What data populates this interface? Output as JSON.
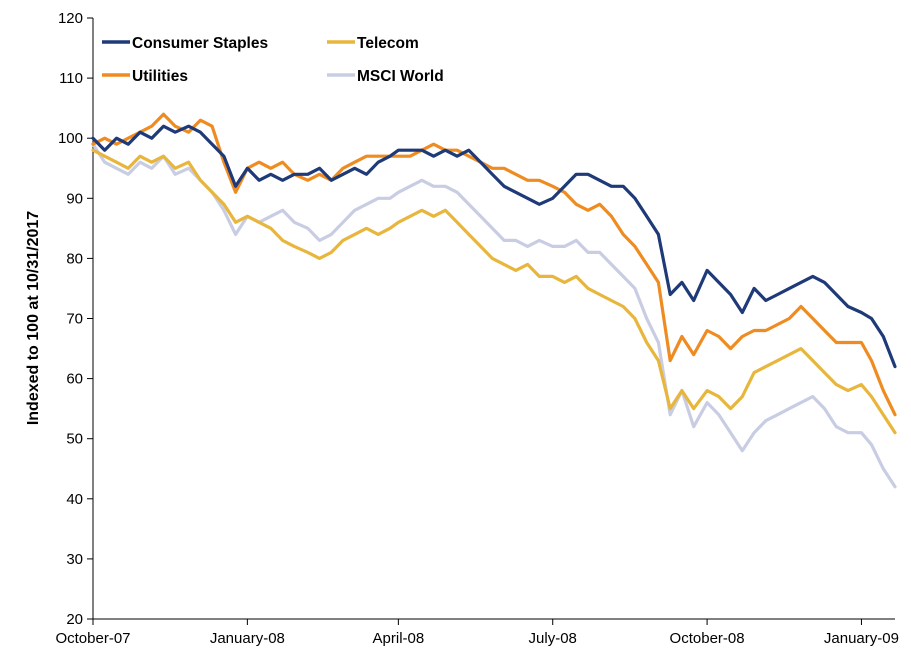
{
  "chart_data": {
    "type": "line",
    "title": "",
    "xlabel": "",
    "ylabel": "Indexed to 100 at 10/31/2017",
    "ylim": [
      20,
      120
    ],
    "yticks": [
      20,
      30,
      40,
      50,
      60,
      70,
      80,
      90,
      100,
      110,
      120
    ],
    "xlim": [
      "2007-10-31",
      "2009-02-20"
    ],
    "xticks": [
      {
        "label": "October-07",
        "date": "2007-10-31"
      },
      {
        "label": "January-08",
        "date": "2008-01-31"
      },
      {
        "label": "April-08",
        "date": "2008-04-30"
      },
      {
        "label": "July-08",
        "date": "2008-07-31"
      },
      {
        "label": "October-08",
        "date": "2008-10-31"
      },
      {
        "label": "January-09",
        "date": "2009-01-31"
      }
    ],
    "grid": false,
    "legend": "top-left",
    "series": [
      {
        "name": "Consumer Staples",
        "color": "#1f3a78",
        "points": [
          [
            "2007-10-31",
            100
          ],
          [
            "2007-11-07",
            98
          ],
          [
            "2007-11-14",
            100
          ],
          [
            "2007-11-21",
            99
          ],
          [
            "2007-11-28",
            101
          ],
          [
            "2007-12-05",
            100
          ],
          [
            "2007-12-12",
            102
          ],
          [
            "2007-12-19",
            101
          ],
          [
            "2007-12-27",
            102
          ],
          [
            "2008-01-03",
            101
          ],
          [
            "2008-01-10",
            99
          ],
          [
            "2008-01-17",
            97
          ],
          [
            "2008-01-24",
            92
          ],
          [
            "2008-01-31",
            95
          ],
          [
            "2008-02-07",
            93
          ],
          [
            "2008-02-14",
            94
          ],
          [
            "2008-02-21",
            93
          ],
          [
            "2008-02-28",
            94
          ],
          [
            "2008-03-07",
            94
          ],
          [
            "2008-03-14",
            95
          ],
          [
            "2008-03-21",
            93
          ],
          [
            "2008-03-28",
            94
          ],
          [
            "2008-04-04",
            95
          ],
          [
            "2008-04-11",
            94
          ],
          [
            "2008-04-18",
            96
          ],
          [
            "2008-04-25",
            97
          ],
          [
            "2008-04-30",
            98
          ],
          [
            "2008-05-07",
            98
          ],
          [
            "2008-05-14",
            98
          ],
          [
            "2008-05-21",
            97
          ],
          [
            "2008-05-28",
            98
          ],
          [
            "2008-06-04",
            97
          ],
          [
            "2008-06-11",
            98
          ],
          [
            "2008-06-18",
            96
          ],
          [
            "2008-06-25",
            94
          ],
          [
            "2008-07-02",
            92
          ],
          [
            "2008-07-09",
            91
          ],
          [
            "2008-07-16",
            90
          ],
          [
            "2008-07-23",
            89
          ],
          [
            "2008-07-31",
            90
          ],
          [
            "2008-08-07",
            92
          ],
          [
            "2008-08-14",
            94
          ],
          [
            "2008-08-21",
            94
          ],
          [
            "2008-08-28",
            93
          ],
          [
            "2008-09-04",
            92
          ],
          [
            "2008-09-11",
            92
          ],
          [
            "2008-09-18",
            90
          ],
          [
            "2008-09-25",
            87
          ],
          [
            "2008-10-02",
            84
          ],
          [
            "2008-10-09",
            74
          ],
          [
            "2008-10-16",
            76
          ],
          [
            "2008-10-23",
            73
          ],
          [
            "2008-10-31",
            78
          ],
          [
            "2008-11-07",
            76
          ],
          [
            "2008-11-14",
            74
          ],
          [
            "2008-11-21",
            71
          ],
          [
            "2008-11-28",
            75
          ],
          [
            "2008-12-05",
            73
          ],
          [
            "2008-12-12",
            74
          ],
          [
            "2008-12-19",
            75
          ],
          [
            "2008-12-26",
            76
          ],
          [
            "2009-01-02",
            77
          ],
          [
            "2009-01-09",
            76
          ],
          [
            "2009-01-16",
            74
          ],
          [
            "2009-01-23",
            72
          ],
          [
            "2009-01-31",
            71
          ],
          [
            "2009-02-06",
            70
          ],
          [
            "2009-02-13",
            67
          ],
          [
            "2009-02-20",
            62
          ]
        ]
      },
      {
        "name": "Telecom",
        "color": "#e8b63c",
        "points": [
          [
            "2007-10-31",
            98
          ],
          [
            "2007-11-07",
            97
          ],
          [
            "2007-11-14",
            96
          ],
          [
            "2007-11-21",
            95
          ],
          [
            "2007-11-28",
            97
          ],
          [
            "2007-12-05",
            96
          ],
          [
            "2007-12-12",
            97
          ],
          [
            "2007-12-19",
            95
          ],
          [
            "2007-12-27",
            96
          ],
          [
            "2008-01-03",
            93
          ],
          [
            "2008-01-10",
            91
          ],
          [
            "2008-01-17",
            89
          ],
          [
            "2008-01-24",
            86
          ],
          [
            "2008-01-31",
            87
          ],
          [
            "2008-02-07",
            86
          ],
          [
            "2008-02-14",
            85
          ],
          [
            "2008-02-21",
            83
          ],
          [
            "2008-02-28",
            82
          ],
          [
            "2008-03-07",
            81
          ],
          [
            "2008-03-14",
            80
          ],
          [
            "2008-03-21",
            81
          ],
          [
            "2008-03-28",
            83
          ],
          [
            "2008-04-04",
            84
          ],
          [
            "2008-04-11",
            85
          ],
          [
            "2008-04-18",
            84
          ],
          [
            "2008-04-25",
            85
          ],
          [
            "2008-04-30",
            86
          ],
          [
            "2008-05-07",
            87
          ],
          [
            "2008-05-14",
            88
          ],
          [
            "2008-05-21",
            87
          ],
          [
            "2008-05-28",
            88
          ],
          [
            "2008-06-04",
            86
          ],
          [
            "2008-06-11",
            84
          ],
          [
            "2008-06-18",
            82
          ],
          [
            "2008-06-25",
            80
          ],
          [
            "2008-07-02",
            79
          ],
          [
            "2008-07-09",
            78
          ],
          [
            "2008-07-16",
            79
          ],
          [
            "2008-07-23",
            77
          ],
          [
            "2008-07-31",
            77
          ],
          [
            "2008-08-07",
            76
          ],
          [
            "2008-08-14",
            77
          ],
          [
            "2008-08-21",
            75
          ],
          [
            "2008-08-28",
            74
          ],
          [
            "2008-09-04",
            73
          ],
          [
            "2008-09-11",
            72
          ],
          [
            "2008-09-18",
            70
          ],
          [
            "2008-09-25",
            66
          ],
          [
            "2008-10-02",
            63
          ],
          [
            "2008-10-09",
            55
          ],
          [
            "2008-10-16",
            58
          ],
          [
            "2008-10-23",
            55
          ],
          [
            "2008-10-31",
            58
          ],
          [
            "2008-11-07",
            57
          ],
          [
            "2008-11-14",
            55
          ],
          [
            "2008-11-21",
            57
          ],
          [
            "2008-11-28",
            61
          ],
          [
            "2008-12-05",
            62
          ],
          [
            "2008-12-12",
            63
          ],
          [
            "2008-12-19",
            64
          ],
          [
            "2008-12-26",
            65
          ],
          [
            "2009-01-02",
            63
          ],
          [
            "2009-01-09",
            61
          ],
          [
            "2009-01-16",
            59
          ],
          [
            "2009-01-23",
            58
          ],
          [
            "2009-01-31",
            59
          ],
          [
            "2009-02-06",
            57
          ],
          [
            "2009-02-13",
            54
          ],
          [
            "2009-02-20",
            51
          ]
        ]
      },
      {
        "name": "Utilities",
        "color": "#ef8c21",
        "points": [
          [
            "2007-10-31",
            99
          ],
          [
            "2007-11-07",
            100
          ],
          [
            "2007-11-14",
            99
          ],
          [
            "2007-11-21",
            100
          ],
          [
            "2007-11-28",
            101
          ],
          [
            "2007-12-05",
            102
          ],
          [
            "2007-12-12",
            104
          ],
          [
            "2007-12-19",
            102
          ],
          [
            "2007-12-27",
            101
          ],
          [
            "2008-01-03",
            103
          ],
          [
            "2008-01-10",
            102
          ],
          [
            "2008-01-17",
            96
          ],
          [
            "2008-01-24",
            91
          ],
          [
            "2008-01-31",
            95
          ],
          [
            "2008-02-07",
            96
          ],
          [
            "2008-02-14",
            95
          ],
          [
            "2008-02-21",
            96
          ],
          [
            "2008-02-28",
            94
          ],
          [
            "2008-03-07",
            93
          ],
          [
            "2008-03-14",
            94
          ],
          [
            "2008-03-21",
            93
          ],
          [
            "2008-03-28",
            95
          ],
          [
            "2008-04-04",
            96
          ],
          [
            "2008-04-11",
            97
          ],
          [
            "2008-04-18",
            97
          ],
          [
            "2008-04-25",
            97
          ],
          [
            "2008-04-30",
            97
          ],
          [
            "2008-05-07",
            97
          ],
          [
            "2008-05-14",
            98
          ],
          [
            "2008-05-21",
            99
          ],
          [
            "2008-05-28",
            98
          ],
          [
            "2008-06-04",
            98
          ],
          [
            "2008-06-11",
            97
          ],
          [
            "2008-06-18",
            96
          ],
          [
            "2008-06-25",
            95
          ],
          [
            "2008-07-02",
            95
          ],
          [
            "2008-07-09",
            94
          ],
          [
            "2008-07-16",
            93
          ],
          [
            "2008-07-23",
            93
          ],
          [
            "2008-07-31",
            92
          ],
          [
            "2008-08-07",
            91
          ],
          [
            "2008-08-14",
            89
          ],
          [
            "2008-08-21",
            88
          ],
          [
            "2008-08-28",
            89
          ],
          [
            "2008-09-04",
            87
          ],
          [
            "2008-09-11",
            84
          ],
          [
            "2008-09-18",
            82
          ],
          [
            "2008-09-25",
            79
          ],
          [
            "2008-10-02",
            76
          ],
          [
            "2008-10-09",
            63
          ],
          [
            "2008-10-16",
            67
          ],
          [
            "2008-10-23",
            64
          ],
          [
            "2008-10-31",
            68
          ],
          [
            "2008-11-07",
            67
          ],
          [
            "2008-11-14",
            65
          ],
          [
            "2008-11-21",
            67
          ],
          [
            "2008-11-28",
            68
          ],
          [
            "2008-12-05",
            68
          ],
          [
            "2008-12-12",
            69
          ],
          [
            "2008-12-19",
            70
          ],
          [
            "2008-12-26",
            72
          ],
          [
            "2009-01-02",
            70
          ],
          [
            "2009-01-09",
            68
          ],
          [
            "2009-01-16",
            66
          ],
          [
            "2009-01-23",
            66
          ],
          [
            "2009-01-31",
            66
          ],
          [
            "2009-02-06",
            63
          ],
          [
            "2009-02-13",
            58
          ],
          [
            "2009-02-20",
            54
          ]
        ]
      },
      {
        "name": "MSCI World",
        "color": "#c9cde3",
        "points": [
          [
            "2007-10-31",
            99
          ],
          [
            "2007-11-07",
            96
          ],
          [
            "2007-11-14",
            95
          ],
          [
            "2007-11-21",
            94
          ],
          [
            "2007-11-28",
            96
          ],
          [
            "2007-12-05",
            95
          ],
          [
            "2007-12-12",
            97
          ],
          [
            "2007-12-19",
            94
          ],
          [
            "2007-12-27",
            95
          ],
          [
            "2008-01-03",
            93
          ],
          [
            "2008-01-10",
            91
          ],
          [
            "2008-01-17",
            88
          ],
          [
            "2008-01-24",
            84
          ],
          [
            "2008-01-31",
            87
          ],
          [
            "2008-02-07",
            86
          ],
          [
            "2008-02-14",
            87
          ],
          [
            "2008-02-21",
            88
          ],
          [
            "2008-02-28",
            86
          ],
          [
            "2008-03-07",
            85
          ],
          [
            "2008-03-14",
            83
          ],
          [
            "2008-03-21",
            84
          ],
          [
            "2008-03-28",
            86
          ],
          [
            "2008-04-04",
            88
          ],
          [
            "2008-04-11",
            89
          ],
          [
            "2008-04-18",
            90
          ],
          [
            "2008-04-25",
            90
          ],
          [
            "2008-04-30",
            91
          ],
          [
            "2008-05-07",
            92
          ],
          [
            "2008-05-14",
            93
          ],
          [
            "2008-05-21",
            92
          ],
          [
            "2008-05-28",
            92
          ],
          [
            "2008-06-04",
            91
          ],
          [
            "2008-06-11",
            89
          ],
          [
            "2008-06-18",
            87
          ],
          [
            "2008-06-25",
            85
          ],
          [
            "2008-07-02",
            83
          ],
          [
            "2008-07-09",
            83
          ],
          [
            "2008-07-16",
            82
          ],
          [
            "2008-07-23",
            83
          ],
          [
            "2008-07-31",
            82
          ],
          [
            "2008-08-07",
            82
          ],
          [
            "2008-08-14",
            83
          ],
          [
            "2008-08-21",
            81
          ],
          [
            "2008-08-28",
            81
          ],
          [
            "2008-09-04",
            79
          ],
          [
            "2008-09-11",
            77
          ],
          [
            "2008-09-18",
            75
          ],
          [
            "2008-09-25",
            70
          ],
          [
            "2008-10-02",
            66
          ],
          [
            "2008-10-09",
            54
          ],
          [
            "2008-10-16",
            58
          ],
          [
            "2008-10-23",
            52
          ],
          [
            "2008-10-31",
            56
          ],
          [
            "2008-11-07",
            54
          ],
          [
            "2008-11-14",
            51
          ],
          [
            "2008-11-21",
            48
          ],
          [
            "2008-11-28",
            51
          ],
          [
            "2008-12-05",
            53
          ],
          [
            "2008-12-12",
            54
          ],
          [
            "2008-12-19",
            55
          ],
          [
            "2008-12-26",
            56
          ],
          [
            "2009-01-02",
            57
          ],
          [
            "2009-01-09",
            55
          ],
          [
            "2009-01-16",
            52
          ],
          [
            "2009-01-23",
            51
          ],
          [
            "2009-01-31",
            51
          ],
          [
            "2009-02-06",
            49
          ],
          [
            "2009-02-13",
            45
          ],
          [
            "2009-02-20",
            42
          ]
        ]
      }
    ]
  }
}
